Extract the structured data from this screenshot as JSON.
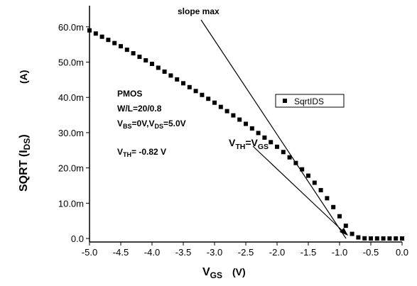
{
  "chart_data": {
    "type": "scatter",
    "x_label": [
      "V",
      "GS",
      "(V)"
    ],
    "y_label": [
      "SQRT (I",
      "DS",
      ")",
      "(A)"
    ],
    "annotations": {
      "slope": "slope max",
      "device": "PMOS",
      "size": "W/L=20/0.8",
      "bias": [
        "V",
        "BS",
        "=0V,V",
        "DS",
        "=5.0V"
      ],
      "vth": [
        "V",
        "TH",
        "= -0.82 V"
      ],
      "vth_eq": [
        "V",
        "TH",
        "=V",
        "GS"
      ]
    },
    "series": [
      {
        "name": "SqrtIDS",
        "color": "#000000",
        "x": [
          -5.0,
          -4.9,
          -4.8,
          -4.7,
          -4.6,
          -4.5,
          -4.4,
          -4.3,
          -4.2,
          -4.1,
          -4.0,
          -3.9,
          -3.8,
          -3.7,
          -3.6,
          -3.5,
          -3.4,
          -3.3,
          -3.2,
          -3.1,
          -3.0,
          -2.9,
          -2.8,
          -2.7,
          -2.6,
          -2.5,
          -2.4,
          -2.3,
          -2.2,
          -2.1,
          -2.0,
          -1.9,
          -1.8,
          -1.7,
          -1.6,
          -1.5,
          -1.4,
          -1.3,
          -1.2,
          -1.1,
          -1.0,
          -0.9,
          -0.8,
          -0.7,
          -0.6,
          -0.5,
          -0.4,
          -0.3,
          -0.2,
          -0.1,
          0
        ],
        "values": [
          0.059,
          0.0581,
          0.0572,
          0.0563,
          0.0554,
          0.0545,
          0.0535,
          0.0525,
          0.0515,
          0.0505,
          0.0495,
          0.0484,
          0.0473,
          0.0462,
          0.0451,
          0.044,
          0.0429,
          0.0418,
          0.0407,
          0.0396,
          0.0385,
          0.0373,
          0.0361,
          0.0349,
          0.0337,
          0.0325,
          0.0312,
          0.0299,
          0.0286,
          0.0273,
          0.026,
          0.0245,
          0.023,
          0.0214,
          0.0196,
          0.0178,
          0.0158,
          0.0137,
          0.0114,
          0.0089,
          0.0063,
          0.0036,
          0.0013,
          0.0003,
          5e-05,
          0,
          0,
          0,
          0,
          0,
          0
        ]
      }
    ],
    "xlim": [
      -5,
      0
    ],
    "xticks": [
      {
        "value": -5,
        "label": "-5.0"
      },
      -4.5,
      {
        "value": -4,
        "label": "-4.0"
      },
      -3.5,
      {
        "value": -3,
        "label": "-3.0"
      },
      -2.5,
      {
        "value": -2,
        "label": "-2.0"
      },
      -1.5,
      {
        "value": -1,
        "label": "-1.0"
      },
      -0.5,
      {
        "value": 0,
        "label": "0.0"
      }
    ],
    "ylim": [
      -0.001,
      0.066
    ],
    "yticks": [
      {
        "value": 0,
        "label": "0.0"
      },
      {
        "value": 0.01,
        "label": "10.0m"
      },
      {
        "value": 0.02,
        "label": "20.0m"
      },
      {
        "value": 0.03,
        "label": "30.0m"
      },
      {
        "value": 0.04,
        "label": "40.0m"
      },
      {
        "value": 0.05,
        "label": "50.0m"
      },
      {
        "value": 0.06,
        "label": "60.0m"
      }
    ],
    "legend": "upper right"
  }
}
